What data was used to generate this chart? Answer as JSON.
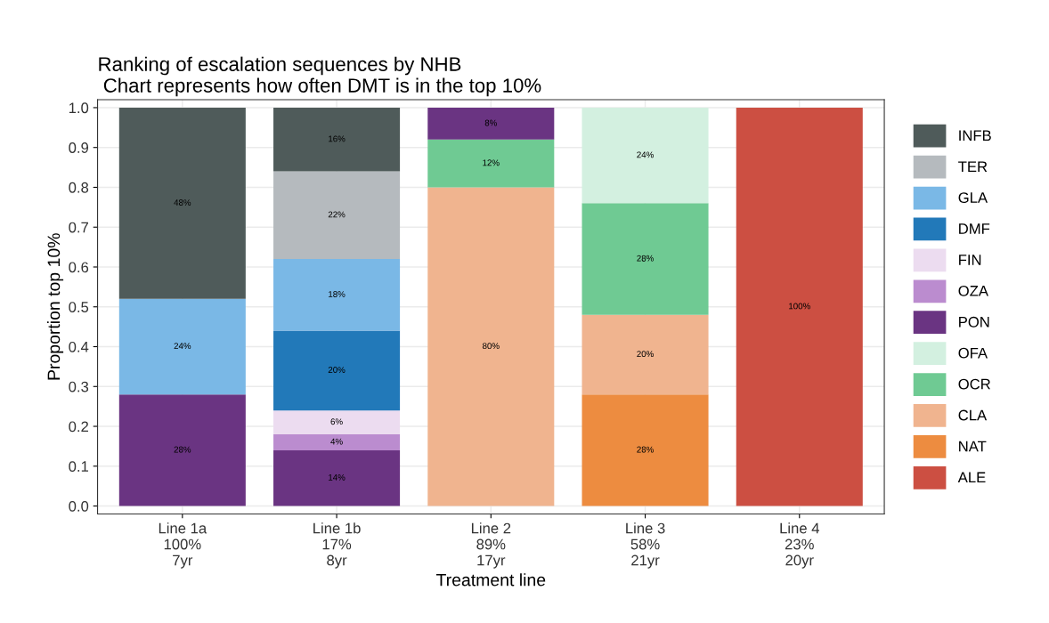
{
  "chart_data": {
    "type": "bar",
    "stacked": true,
    "title": "Ranking of escalation sequences by NHB\n Chart represents how often DMT is in the top 10%",
    "xlabel": "Treatment line",
    "ylabel": "Proportion top 10%",
    "categories": [
      "Line 1a\n100%\n7yr",
      "Line 1b\n17%\n8yr",
      "Line 2\n89%\n17yr",
      "Line 3\n58%\n21yr",
      "Line 4\n23%\n20yr"
    ],
    "ylim": [
      -0.02,
      1.02
    ],
    "yticks": [
      {
        "value": 0,
        "label": "0.0"
      },
      0.1,
      0.2,
      0.3,
      0.4,
      0.5,
      0.6,
      0.7,
      0.8,
      0.9,
      {
        "value": 1,
        "label": "1.0"
      }
    ],
    "grid": true,
    "legend": "right",
    "series": [
      {
        "name": "ALE",
        "color": "#cc4f42",
        "values": [
          null,
          null,
          null,
          null,
          1.0
        ],
        "value_labels": [
          null,
          null,
          null,
          null,
          "100%"
        ]
      },
      {
        "name": "NAT",
        "color": "#ed8c40",
        "values": [
          null,
          null,
          null,
          0.28,
          null
        ],
        "value_labels": [
          null,
          null,
          null,
          "28%",
          null
        ]
      },
      {
        "name": "CLA",
        "color": "#f0b48f",
        "values": [
          null,
          null,
          0.8,
          0.2,
          null
        ],
        "value_labels": [
          null,
          null,
          "80%",
          "20%",
          null
        ]
      },
      {
        "name": "OCR",
        "color": "#6fca93",
        "values": [
          null,
          null,
          0.12,
          0.28,
          null
        ],
        "value_labels": [
          null,
          null,
          "12%",
          "28%",
          null
        ]
      },
      {
        "name": "OFA",
        "color": "#d3f0e0",
        "values": [
          null,
          null,
          null,
          0.24,
          null
        ],
        "value_labels": [
          null,
          null,
          null,
          "24%",
          null
        ]
      },
      {
        "name": "PON",
        "color": "#6a3482",
        "values": [
          0.28,
          0.14,
          0.08,
          null,
          null
        ],
        "value_labels": [
          "28%",
          "14%",
          "8%",
          null,
          null
        ]
      },
      {
        "name": "OZA",
        "color": "#bb8ccf",
        "values": [
          null,
          0.04,
          null,
          null,
          null
        ],
        "value_labels": [
          null,
          "4%",
          null,
          null,
          null
        ]
      },
      {
        "name": "FIN",
        "color": "#ecdcf0",
        "values": [
          null,
          0.06,
          null,
          null,
          null
        ],
        "value_labels": [
          null,
          "6%",
          null,
          null,
          null
        ]
      },
      {
        "name": "DMF",
        "color": "#2279b9",
        "values": [
          null,
          0.2,
          null,
          null,
          null
        ],
        "value_labels": [
          null,
          "20%",
          null,
          null,
          null
        ]
      },
      {
        "name": "GLA",
        "color": "#7ab8e6",
        "values": [
          0.24,
          0.18,
          null,
          null,
          null
        ],
        "value_labels": [
          "24%",
          "18%",
          null,
          null,
          null
        ]
      },
      {
        "name": "TER",
        "color": "#b5babe",
        "values": [
          null,
          0.22,
          null,
          null,
          null
        ],
        "value_labels": [
          null,
          "22%",
          null,
          null,
          null
        ]
      },
      {
        "name": "INFB",
        "color": "#4f5b5a",
        "values": [
          0.48,
          0.16,
          null,
          null,
          null
        ],
        "value_labels": [
          "48%",
          "16%",
          null,
          null,
          null
        ]
      }
    ]
  }
}
